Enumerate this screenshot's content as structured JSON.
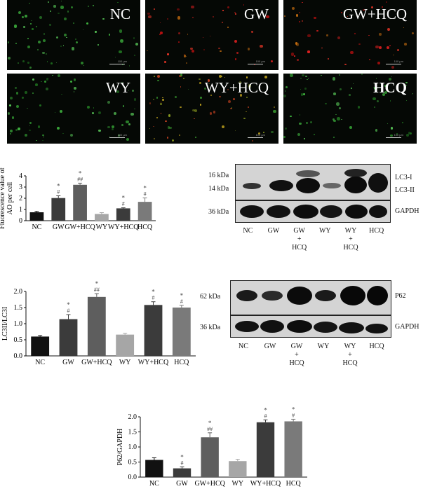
{
  "micrographs": [
    {
      "label": "NC",
      "bold": false,
      "tone": "green"
    },
    {
      "label": "GW",
      "bold": false,
      "tone": "red"
    },
    {
      "label": "GW+HCQ",
      "bold": false,
      "tone": "red"
    },
    {
      "label": "WY",
      "bold": false,
      "tone": "green"
    },
    {
      "label": "WY+HCQ",
      "bold": false,
      "tone": "mixed"
    },
    {
      "label": "HCQ",
      "bold": true,
      "tone": "green"
    }
  ],
  "scalebar_text": "100 μm",
  "colors": {
    "black": "#111111",
    "dark": "#3b3b3b",
    "light": "#a6a6a6",
    "mid": "#5e5e5e",
    "grey": "#7a7a7a"
  },
  "chart_data": [
    {
      "type": "bar",
      "categories": [
        "NC",
        "GW",
        "GW+HCQ",
        "WY",
        "WY+HCQ",
        "HCQ"
      ],
      "values": [
        0.75,
        2.02,
        3.2,
        0.6,
        1.1,
        1.68
      ],
      "errors": [
        0.08,
        0.2,
        0.15,
        0.12,
        0.05,
        0.35
      ],
      "annotations": [
        [
          "",
          ""
        ],
        [
          "*",
          "#"
        ],
        [
          "*",
          "##"
        ],
        [
          "",
          ""
        ],
        [
          "*",
          "#"
        ],
        [
          "*",
          "#"
        ]
      ],
      "ylabel": "Fluorescence value of AO per cell",
      "ylim": [
        0,
        4
      ],
      "yticks": [
        0,
        1,
        2,
        3,
        4
      ],
      "bar_colors": [
        "black",
        "dark",
        "mid",
        "light",
        "dark",
        "grey"
      ]
    },
    {
      "type": "bar",
      "categories": [
        "NC",
        "GW",
        "GW+HCQ",
        "WY",
        "WY+HCQ",
        "HCQ"
      ],
      "values": [
        0.6,
        1.14,
        1.83,
        0.66,
        1.58,
        1.5
      ],
      "errors": [
        0.03,
        0.14,
        0.1,
        0.04,
        0.1,
        0.07
      ],
      "annotations": [
        [
          "",
          ""
        ],
        [
          "*",
          "#"
        ],
        [
          "*",
          "##"
        ],
        [
          "",
          ""
        ],
        [
          "*",
          "#"
        ],
        [
          "*",
          "#"
        ]
      ],
      "ylabel": "LC3II/LC3I",
      "ylim": [
        0,
        2
      ],
      "yticks": [
        0.0,
        0.5,
        1.0,
        1.5,
        2.0
      ],
      "bar_colors": [
        "black",
        "dark",
        "mid",
        "light",
        "dark",
        "grey"
      ]
    },
    {
      "type": "bar",
      "categories": [
        "NC",
        "GW",
        "GW+HCQ",
        "WY",
        "WY+HCQ",
        "HCQ"
      ],
      "values": [
        0.57,
        0.29,
        1.32,
        0.53,
        1.82,
        1.85
      ],
      "errors": [
        0.07,
        0.05,
        0.15,
        0.06,
        0.08,
        0.07
      ],
      "annotations": [
        [
          "",
          ""
        ],
        [
          "*",
          "#"
        ],
        [
          "*",
          "##"
        ],
        [
          "",
          ""
        ],
        [
          "*",
          "#"
        ],
        [
          "*",
          "#"
        ]
      ],
      "ylabel": "P62/GAPDH",
      "ylim": [
        0,
        2
      ],
      "yticks": [
        0.0,
        0.5,
        1.0,
        1.5,
        2.0
      ],
      "bar_colors": [
        "black",
        "dark",
        "mid",
        "light",
        "dark",
        "grey"
      ]
    }
  ],
  "blot1": {
    "markers": [
      "16 kDa",
      "14 kDa",
      "36 kDa"
    ],
    "bands": [
      "LC3-I",
      "LC3-II",
      "GAPDH"
    ],
    "lanes": [
      "NC",
      "GW",
      "GW",
      "WY",
      "WY",
      "HCQ"
    ],
    "lanes_sub": [
      "",
      "",
      "+",
      "",
      "+",
      ""
    ],
    "lanes_sub2": [
      "",
      "",
      "HCQ",
      "",
      "HCQ",
      ""
    ]
  },
  "blot2": {
    "markers": [
      "62 kDa",
      "36 kDa"
    ],
    "bands": [
      "P62",
      "GAPDH"
    ],
    "lanes": [
      "NC",
      "GW",
      "GW",
      "WY",
      "WY",
      "HCQ"
    ],
    "lanes_sub": [
      "",
      "",
      "+",
      "",
      "+",
      ""
    ],
    "lanes_sub2": [
      "",
      "",
      "HCQ",
      "",
      "HCQ",
      ""
    ]
  }
}
